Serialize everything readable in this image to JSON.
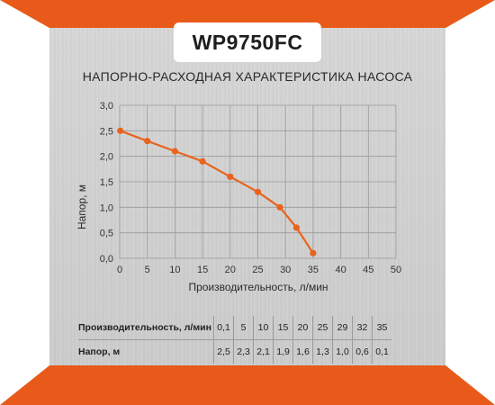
{
  "header": {
    "model": "WP9750FC"
  },
  "chart_data": {
    "type": "line",
    "title": "НАПОРНО-РАСХОДНАЯ ХАРАКТЕРИСТИКА НАСОСА",
    "xlabel": "Производительность, л/мин",
    "ylabel": "Напор, м",
    "xlim": [
      0,
      50
    ],
    "ylim": [
      0,
      3
    ],
    "x_ticks": [
      "0",
      "5",
      "10",
      "15",
      "20",
      "25",
      "30",
      "35",
      "40",
      "45",
      "50"
    ],
    "y_ticks": [
      "0,0",
      "0,5",
      "1,0",
      "1,5",
      "2,0",
      "2,5",
      "3,0"
    ],
    "x_tick_values": [
      0,
      5,
      10,
      15,
      20,
      25,
      30,
      35,
      40,
      45,
      50
    ],
    "y_tick_values": [
      0,
      0.5,
      1,
      1.5,
      2,
      2.5,
      3
    ],
    "grid": true,
    "series": [
      {
        "x": [
          0.1,
          5,
          10,
          15,
          20,
          25,
          29,
          32,
          35
        ],
        "y": [
          2.5,
          2.3,
          2.1,
          1.9,
          1.6,
          1.3,
          1.0,
          0.6,
          0.1
        ]
      }
    ],
    "line_color": "#e8641e",
    "grid_color": "#9a9a9a"
  },
  "table": {
    "rows": [
      {
        "label": "Производительность, л/мин",
        "values": [
          "0,1",
          "5",
          "10",
          "15",
          "20",
          "25",
          "29",
          "32",
          "35"
        ]
      },
      {
        "label": "Напор, м",
        "values": [
          "2,5",
          "2,3",
          "2,1",
          "1,9",
          "1,6",
          "1,3",
          "1,0",
          "0,6",
          "0,1"
        ]
      }
    ]
  },
  "colors": {
    "accent": "#e85a1a",
    "panel": "#e6e6e6",
    "text": "#222222"
  }
}
